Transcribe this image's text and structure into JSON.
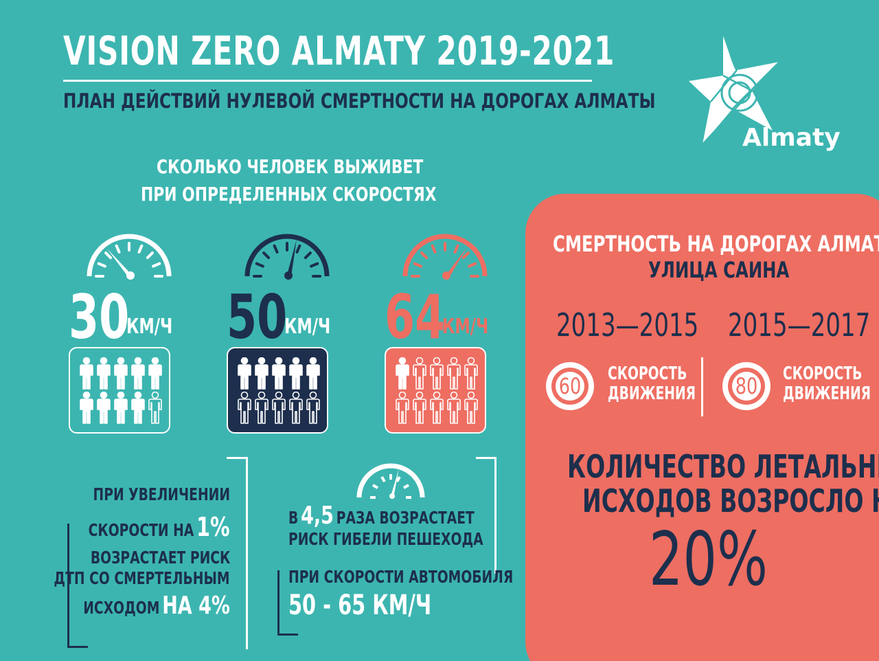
{
  "header": {
    "title": "VISION ZERO ALMATY 2019-2021",
    "subtitle": "ПЛАН ДЕЙСТВИЙ НУЛЕВОЙ СМЕРТНОСТИ НА ДОРОГАХ АЛМАТЫ"
  },
  "logo": {
    "text": "Almaty",
    "icon": "almaty-star-logo"
  },
  "survival": {
    "heading_line1": "СКОЛЬКО ЧЕЛОВЕК ВЫЖИВЕТ",
    "heading_line2": "ПРИ ОПРЕДЕЛЕННЫХ СКОРОСТЯХ",
    "speeds": [
      {
        "value": "30",
        "unit": "КМ/Ч",
        "survivors": 9,
        "total": 10,
        "color": "#ffffff"
      },
      {
        "value": "50",
        "unit": "КМ/Ч",
        "survivors": 5,
        "total": 10,
        "color": "#1d2f4d"
      },
      {
        "value": "64",
        "unit": "КМ/Ч",
        "survivors": 1,
        "total": 10,
        "color": "#ee6e62"
      }
    ]
  },
  "stat_left": {
    "line1": "ПРИ УВЕЛИЧЕНИИ",
    "line2": "СКОРОСТИ НА",
    "line2_value": "1%",
    "line3": "ВОЗРАСТАЕТ РИСК",
    "line4": "ДТП СО СМЕРТЕЛЬНЫМ",
    "line5": "ИСХОДОМ",
    "line5_value": "НА 4%"
  },
  "stat_mid": {
    "prefix": "В",
    "value": "4,5",
    "suffix": "РАЗА ВОЗРАСТАЕТ",
    "line2": "РИСК ГИБЕЛИ ПЕШЕХОДА",
    "line3": "ПРИ СКОРОСТИ АВТОМОБИЛЯ",
    "line4": "50 - 65 КМ/Ч"
  },
  "panel": {
    "title": "СМЕРТНОСТЬ НА ДОРОГАХ АЛМАТЫ",
    "street": "УЛИЦА САИНА",
    "period1": "2013—2015",
    "period2": "2015—2017",
    "sign1": "60",
    "sign2": "80",
    "sign_label1": "СКОРОСТЬ",
    "sign_label2": "ДВИЖЕНИЯ",
    "result_line1": "КОЛИЧЕСТВО ЛЕТАЛЬНЫХ",
    "result_line2": "ИСХОДОВ ВОЗРОСЛО НА",
    "result_value": "20%"
  },
  "colors": {
    "background": "#3cb5b0",
    "navy": "#1d2f4d",
    "coral": "#ee6e62",
    "white": "#ffffff"
  }
}
